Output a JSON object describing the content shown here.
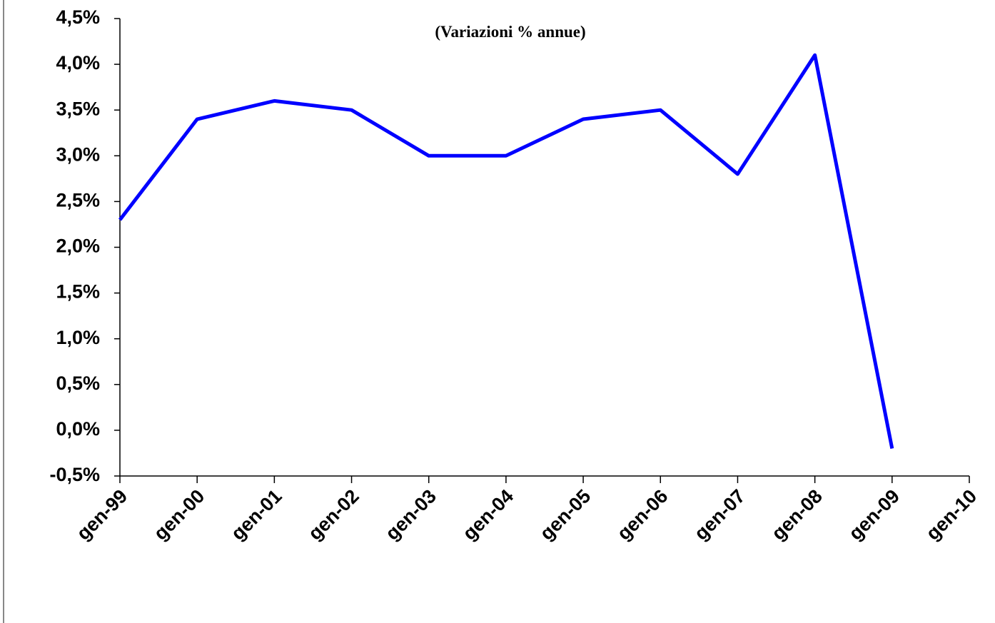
{
  "chart_data": {
    "type": "line",
    "subtitle": "(Variazioni % annue)",
    "categories": [
      "gen-99",
      "gen-00",
      "gen-01",
      "gen-02",
      "gen-03",
      "gen-04",
      "gen-05",
      "gen-06",
      "gen-07",
      "gen-08",
      "gen-09",
      "gen-10"
    ],
    "series": [
      {
        "name": null,
        "color": "#0000ff",
        "values": [
          2.3,
          3.4,
          3.6,
          3.5,
          3.0,
          3.0,
          3.4,
          3.5,
          2.8,
          4.1,
          -0.2,
          null
        ]
      }
    ],
    "ylim": [
      -0.5,
      4.5
    ],
    "yticks": [
      {
        "value": -0.5,
        "label": "-0,5%"
      },
      {
        "value": 0,
        "label": "0,0%"
      },
      {
        "value": 0.5,
        "label": "0,5%"
      },
      {
        "value": 1,
        "label": "1,0%"
      },
      {
        "value": 1.5,
        "label": "1,5%"
      },
      {
        "value": 2,
        "label": "2,0%"
      },
      {
        "value": 2.5,
        "label": "2,5%"
      },
      {
        "value": 3,
        "label": "3,0%"
      },
      {
        "value": 3.5,
        "label": "3,5%"
      },
      {
        "value": 4,
        "label": "4,0%"
      },
      {
        "value": 4.5,
        "label": "4,5%"
      }
    ],
    "grid": false
  }
}
